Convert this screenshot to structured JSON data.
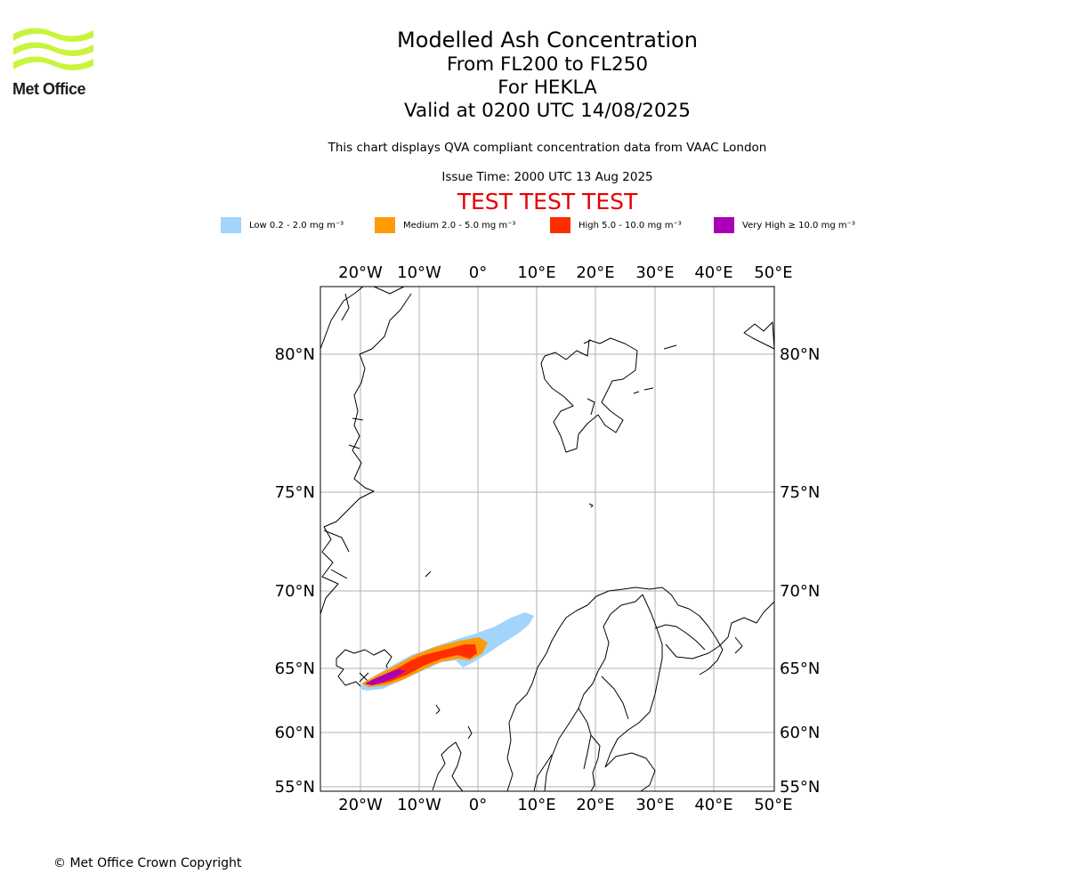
{
  "logo": {
    "name": "Met Office",
    "icon": "met-office-wave-logo-icon",
    "color": "#c8f53c"
  },
  "title": {
    "main": "Modelled Ash Concentration",
    "levels": "From FL200 to FL250",
    "volcano": "For HEKLA",
    "valid": "Valid at 0200 UTC 14/08/2025"
  },
  "info_line": "This chart displays QVA compliant concentration data from VAAC London",
  "issue_time": "Issue Time: 2000 UTC 13 Aug 2025",
  "test_banner": "TEST TEST TEST",
  "legend": [
    {
      "label": "Low 0.2 - 2.0 mg m⁻³",
      "color": "#a2d4fc"
    },
    {
      "label": "Medium 2.0 - 5.0 mg m⁻³",
      "color": "#ff9a05"
    },
    {
      "label": "High 5.0 - 10.0 mg m⁻³",
      "color": "#ff2e00"
    },
    {
      "label": "Very High ≥ 10.0 mg m⁻³",
      "color": "#aa00b5"
    }
  ],
  "map": {
    "lon_labels": [
      "20°W",
      "10°W",
      "0°",
      "10°E",
      "20°E",
      "30°E",
      "40°E",
      "50°E"
    ],
    "lat_labels": [
      "80°N",
      "75°N",
      "70°N",
      "65°N",
      "60°N",
      "55°N"
    ],
    "grid_color": "#b0b0b0"
  },
  "copyright": "© Met Office Crown Copyright"
}
